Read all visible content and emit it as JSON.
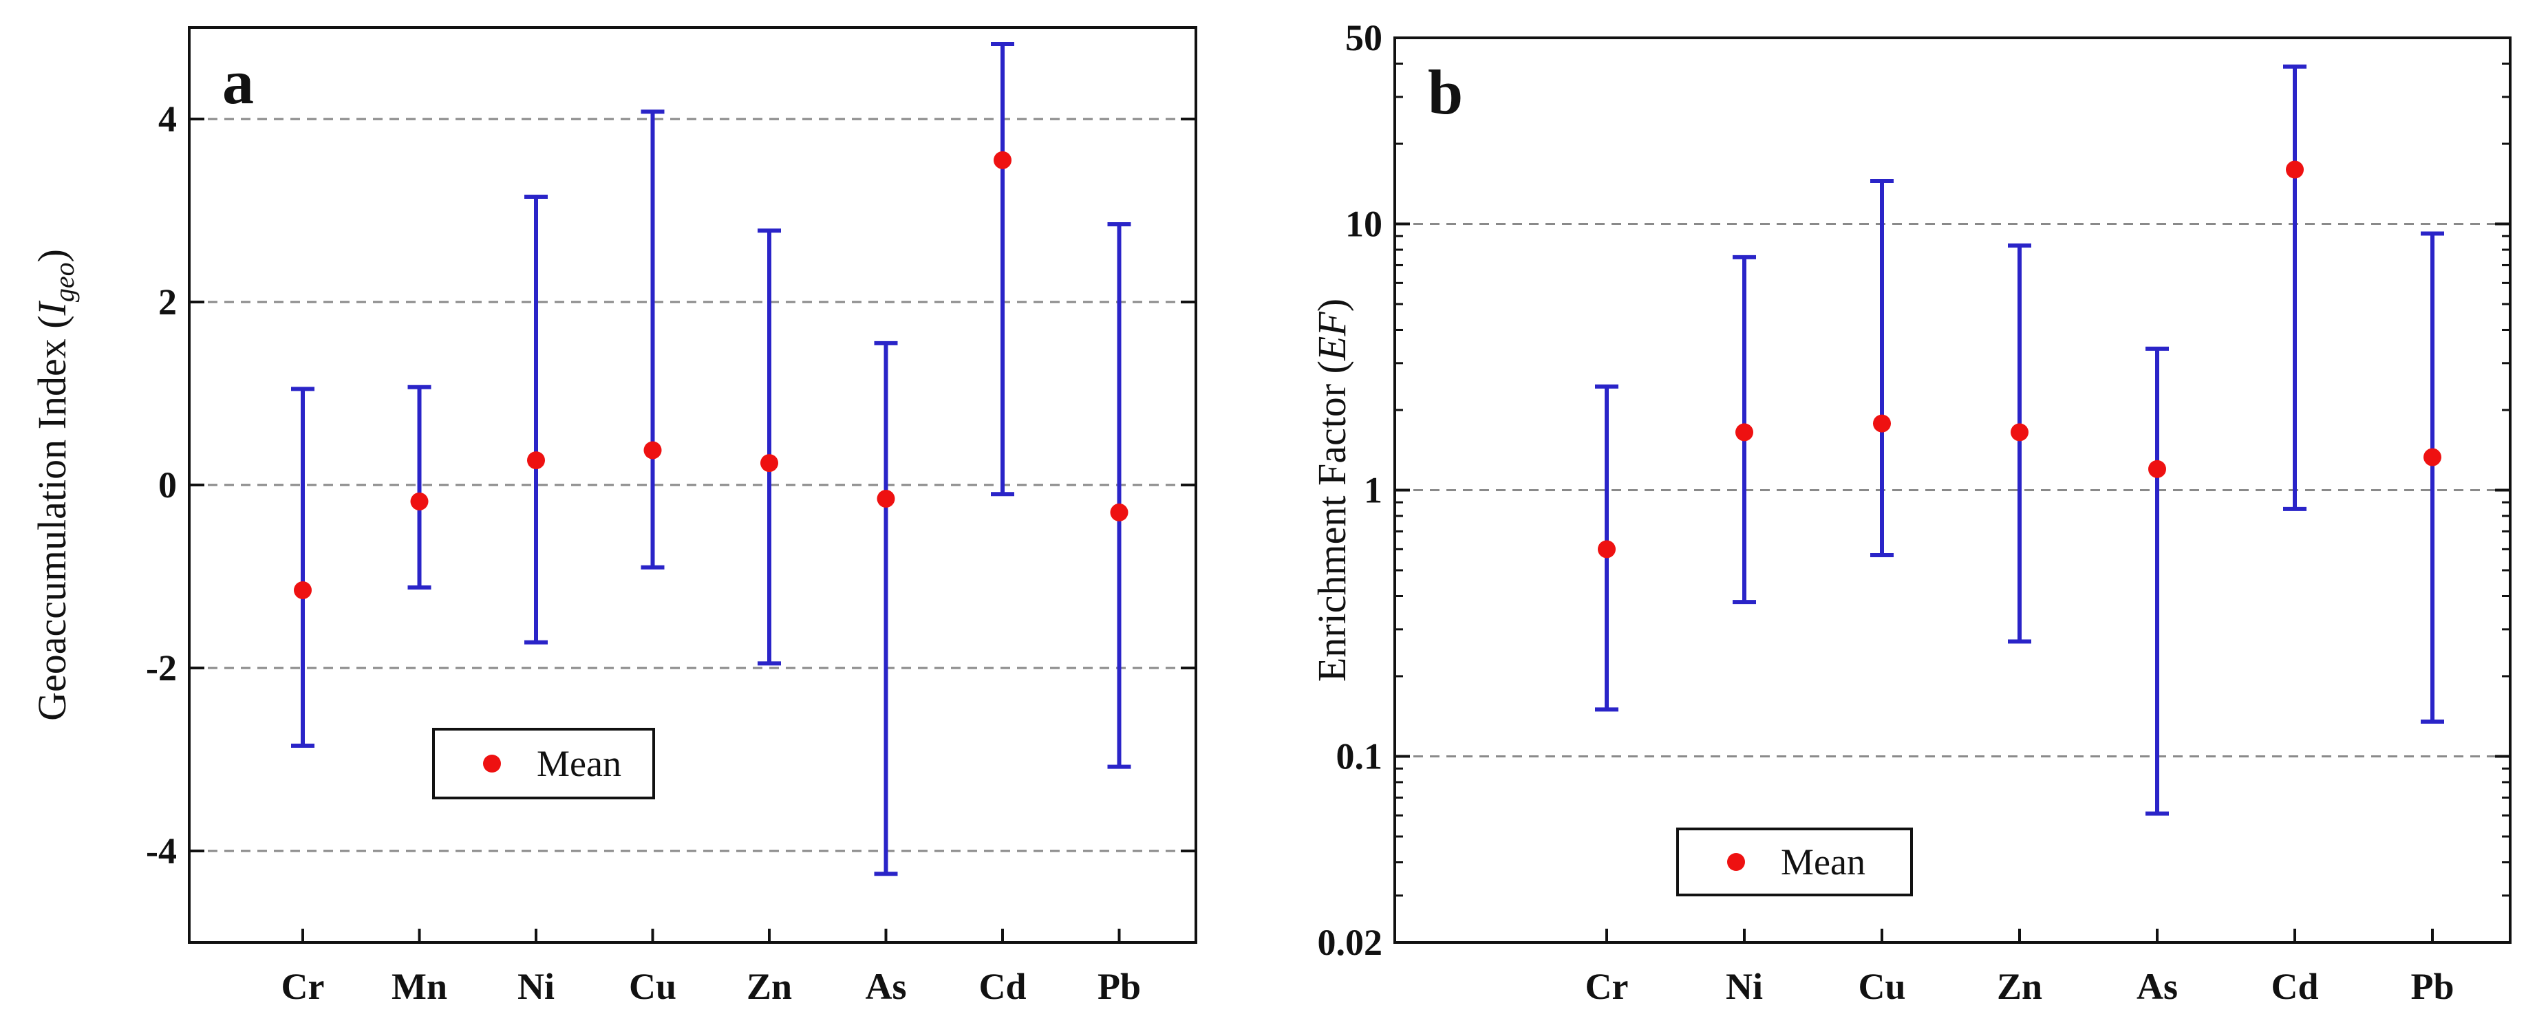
{
  "colors": {
    "errorbar": "#2a24c8",
    "mean_marker": "#ee1111",
    "gridline": "#8a8a8a",
    "frame": "#111111",
    "background": "#ffffff"
  },
  "chart_data": [
    {
      "panel_label": "a",
      "type": "scatter",
      "subtype": "error-bar",
      "categories": [
        "Cr",
        "Mn",
        "Ni",
        "Cu",
        "Zn",
        "As",
        "Cd",
        "Pb"
      ],
      "series": [
        {
          "name": "Mean",
          "values": [
            -1.15,
            -0.18,
            0.27,
            0.38,
            0.24,
            -0.15,
            3.55,
            -0.3
          ]
        }
      ],
      "error_ranges": {
        "min": [
          -2.85,
          -1.12,
          -1.72,
          -0.9,
          -1.95,
          -4.25,
          -0.1,
          -3.08
        ],
        "max": [
          1.05,
          1.07,
          3.15,
          4.08,
          2.78,
          1.55,
          4.82,
          2.85
        ]
      },
      "ylabel": {
        "main": "Geoaccumulation  Index  (",
        "italic_main": "I",
        "italic_sub": "geo",
        "close": ")"
      },
      "xlabel": "",
      "ylim": [
        -5,
        5
      ],
      "yticks": [
        -4,
        -2,
        0,
        2,
        4
      ],
      "yscale": "linear",
      "grid": "horizontal dashed",
      "legend": {
        "entries": [
          "Mean"
        ],
        "position": "lower-left"
      }
    },
    {
      "panel_label": "b",
      "type": "scatter",
      "subtype": "error-bar",
      "categories": [
        "Cr",
        "Ni",
        "Cu",
        "Zn",
        "As",
        "Cd",
        "Pb"
      ],
      "series": [
        {
          "name": "Mean",
          "values": [
            0.6,
            1.65,
            1.78,
            1.65,
            1.2,
            16.0,
            1.33
          ]
        }
      ],
      "error_ranges": {
        "min": [
          0.15,
          0.38,
          0.57,
          0.27,
          0.061,
          0.85,
          0.135
        ],
        "max": [
          2.45,
          7.5,
          14.5,
          8.3,
          3.4,
          39.0,
          9.2
        ]
      },
      "ylabel": {
        "main": "Enrichment  Factor  (",
        "italic_main": "EF",
        "italic_sub": "",
        "close": ")"
      },
      "xlabel": "",
      "ylim": [
        0.02,
        50
      ],
      "yticks": [
        0.02,
        0.1,
        1,
        10,
        50
      ],
      "ytick_labels": [
        "0.02",
        "0.1",
        "1",
        "10",
        "50"
      ],
      "yscale": "log",
      "grid": "horizontal dashed",
      "legend": {
        "entries": [
          "Mean"
        ],
        "position": "lower-left"
      }
    }
  ]
}
